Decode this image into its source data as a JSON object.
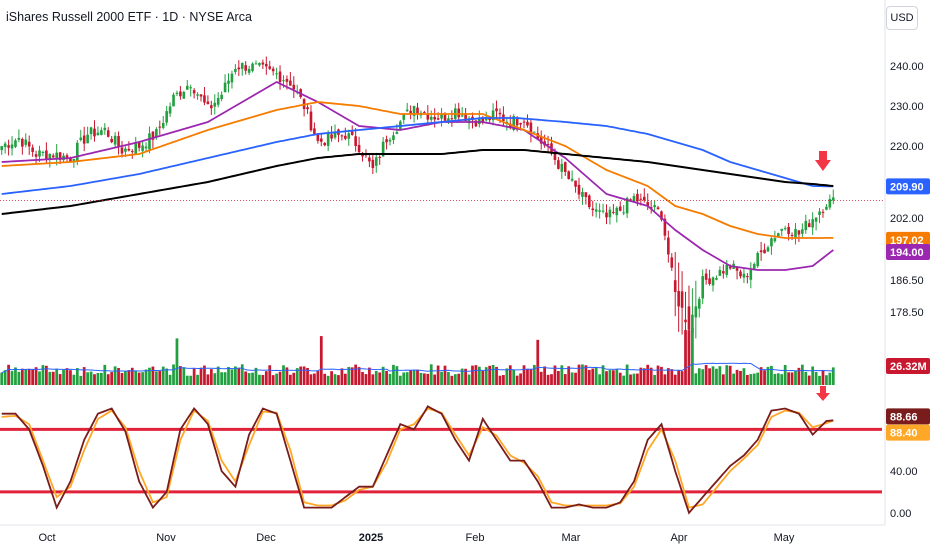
{
  "chart": {
    "title": "iShares Russell 2000 ETF · 1D · NYSE Arca",
    "currency": "USD"
  },
  "colors": {
    "up": "#22a040",
    "down": "#c8182f",
    "ma20": "#9c27b0",
    "ma50": "#f57c00",
    "ma100": "#2962ff",
    "ma200": "#000000",
    "stoch_k": "#7b1c1c",
    "stoch_d": "#ffa726",
    "band": "#e0233a",
    "arrow": "#f23645"
  },
  "chart_data": [
    {
      "type": "candlestick",
      "x_tick_labels": [
        "Oct",
        "Nov",
        "Dec",
        "2025",
        "Feb",
        "Mar",
        "Apr",
        "May"
      ],
      "y_tick_labels": [
        "240.00",
        "230.00",
        "220.00",
        "209.90",
        "202.00",
        "197.02",
        "194.00",
        "186.50",
        "178.50"
      ],
      "y_ticks": [
        240,
        230,
        220,
        202,
        186.5,
        178.5
      ],
      "ylim": [
        172,
        247
      ],
      "price_anchors": [
        [
          0,
          220
        ],
        [
          5,
          222
        ],
        [
          10,
          218
        ],
        [
          15,
          218
        ],
        [
          20,
          217
        ],
        [
          25,
          223
        ],
        [
          30,
          224
        ],
        [
          35,
          219
        ],
        [
          40,
          220
        ],
        [
          45,
          223
        ],
        [
          50,
          232
        ],
        [
          55,
          236
        ],
        [
          60,
          229
        ],
        [
          64,
          233
        ],
        [
          68,
          240
        ],
        [
          72,
          240
        ],
        [
          76,
          239
        ],
        [
          80,
          238
        ],
        [
          84,
          236
        ],
        [
          88,
          230
        ],
        [
          92,
          221
        ],
        [
          96,
          222
        ],
        [
          100,
          223
        ],
        [
          104,
          220
        ],
        [
          108,
          214
        ],
        [
          112,
          222
        ],
        [
          116,
          226
        ],
        [
          120,
          230
        ],
        [
          124,
          228
        ],
        [
          128,
          227
        ],
        [
          132,
          229
        ],
        [
          136,
          227
        ],
        [
          140,
          226
        ],
        [
          144,
          228
        ],
        [
          148,
          226
        ],
        [
          152,
          227
        ],
        [
          156,
          222
        ],
        [
          160,
          218
        ],
        [
          164,
          213
        ],
        [
          168,
          208
        ],
        [
          172,
          204
        ],
        [
          176,
          202
        ],
        [
          180,
          204
        ],
        [
          184,
          207
        ],
        [
          188,
          205
        ],
        [
          192,
          203
        ],
        [
          196,
          183
        ],
        [
          200,
          175
        ],
        [
          204,
          186
        ],
        [
          208,
          188
        ],
        [
          212,
          190
        ],
        [
          216,
          187
        ],
        [
          220,
          192
        ],
        [
          224,
          197
        ],
        [
          228,
          200
        ],
        [
          232,
          198
        ],
        [
          236,
          202
        ],
        [
          240,
          206
        ],
        [
          242,
          206
        ]
      ],
      "ma_anchors": {
        "ma20": [
          [
            0,
            216
          ],
          [
            20,
            217
          ],
          [
            40,
            221
          ],
          [
            60,
            226
          ],
          [
            80,
            236
          ],
          [
            92,
            231
          ],
          [
            104,
            225
          ],
          [
            116,
            224
          ],
          [
            128,
            226
          ],
          [
            140,
            226
          ],
          [
            152,
            224
          ],
          [
            164,
            217
          ],
          [
            176,
            208
          ],
          [
            188,
            205
          ],
          [
            196,
            199
          ],
          [
            204,
            194
          ],
          [
            212,
            190
          ],
          [
            220,
            189
          ],
          [
            228,
            189
          ],
          [
            236,
            190
          ],
          [
            242,
            194
          ]
        ],
        "ma50": [
          [
            0,
            215
          ],
          [
            20,
            216
          ],
          [
            40,
            218
          ],
          [
            60,
            224
          ],
          [
            80,
            229
          ],
          [
            92,
            231
          ],
          [
            104,
            230
          ],
          [
            116,
            228
          ],
          [
            128,
            228
          ],
          [
            140,
            228
          ],
          [
            152,
            224
          ],
          [
            164,
            220
          ],
          [
            176,
            214
          ],
          [
            188,
            210
          ],
          [
            196,
            205
          ],
          [
            204,
            203
          ],
          [
            212,
            200
          ],
          [
            220,
            198
          ],
          [
            228,
            197
          ],
          [
            236,
            197
          ],
          [
            242,
            197.02
          ]
        ],
        "ma100": [
          [
            0,
            208
          ],
          [
            20,
            210
          ],
          [
            40,
            213
          ],
          [
            60,
            217
          ],
          [
            80,
            221
          ],
          [
            92,
            223
          ],
          [
            104,
            224
          ],
          [
            116,
            225
          ],
          [
            128,
            226
          ],
          [
            140,
            227
          ],
          [
            150,
            227
          ],
          [
            164,
            226
          ],
          [
            176,
            225
          ],
          [
            188,
            223
          ],
          [
            196,
            221
          ],
          [
            204,
            219
          ],
          [
            212,
            216
          ],
          [
            220,
            214
          ],
          [
            228,
            212
          ],
          [
            236,
            210
          ],
          [
            242,
            209.9
          ]
        ],
        "ma200": [
          [
            0,
            203
          ],
          [
            20,
            205
          ],
          [
            40,
            208
          ],
          [
            60,
            211
          ],
          [
            80,
            215
          ],
          [
            92,
            217
          ],
          [
            104,
            218
          ],
          [
            116,
            218
          ],
          [
            128,
            218
          ],
          [
            140,
            219
          ],
          [
            152,
            219
          ],
          [
            164,
            218
          ],
          [
            176,
            217
          ],
          [
            188,
            216
          ],
          [
            196,
            215
          ],
          [
            204,
            214
          ],
          [
            212,
            213
          ],
          [
            220,
            212
          ],
          [
            228,
            211
          ],
          [
            236,
            210.5
          ],
          [
            242,
            210
          ]
        ]
      },
      "last_price": 206.4,
      "volume_tag": "26.32M",
      "volume_spikes": [
        51,
        93,
        156,
        199,
        200,
        201
      ]
    },
    {
      "type": "line",
      "name": "stochastic",
      "y_tick_labels": [
        "88.66",
        "88.40",
        "40.00",
        "0.00"
      ],
      "y_ticks": [
        40,
        0
      ],
      "ylim": [
        -5,
        112
      ],
      "band_levels": [
        80,
        20
      ],
      "k_anchors": [
        [
          0,
          95
        ],
        [
          4,
          95
        ],
        [
          8,
          80
        ],
        [
          12,
          45
        ],
        [
          16,
          5
        ],
        [
          20,
          30
        ],
        [
          24,
          70
        ],
        [
          28,
          95
        ],
        [
          32,
          100
        ],
        [
          36,
          78
        ],
        [
          40,
          30
        ],
        [
          44,
          5
        ],
        [
          48,
          20
        ],
        [
          52,
          80
        ],
        [
          56,
          100
        ],
        [
          60,
          85
        ],
        [
          64,
          40
        ],
        [
          68,
          25
        ],
        [
          72,
          75
        ],
        [
          76,
          100
        ],
        [
          80,
          95
        ],
        [
          84,
          50
        ],
        [
          88,
          5
        ],
        [
          92,
          5
        ],
        [
          96,
          5
        ],
        [
          100,
          15
        ],
        [
          104,
          25
        ],
        [
          108,
          25
        ],
        [
          112,
          55
        ],
        [
          116,
          85
        ],
        [
          120,
          80
        ],
        [
          124,
          102
        ],
        [
          128,
          95
        ],
        [
          132,
          70
        ],
        [
          136,
          50
        ],
        [
          140,
          90
        ],
        [
          144,
          70
        ],
        [
          148,
          50
        ],
        [
          152,
          50
        ],
        [
          156,
          30
        ],
        [
          160,
          5
        ],
        [
          164,
          5
        ],
        [
          168,
          8
        ],
        [
          172,
          5
        ],
        [
          176,
          5
        ],
        [
          180,
          10
        ],
        [
          184,
          30
        ],
        [
          188,
          70
        ],
        [
          192,
          85
        ],
        [
          196,
          40
        ],
        [
          200,
          0
        ],
        [
          204,
          15
        ],
        [
          208,
          30
        ],
        [
          212,
          45
        ],
        [
          216,
          55
        ],
        [
          220,
          70
        ],
        [
          224,
          98
        ],
        [
          228,
          100
        ],
        [
          232,
          95
        ],
        [
          236,
          75
        ],
        [
          240,
          88
        ],
        [
          242,
          88.66
        ]
      ],
      "d_anchors": [
        [
          0,
          92
        ],
        [
          4,
          93
        ],
        [
          8,
          85
        ],
        [
          12,
          50
        ],
        [
          16,
          15
        ],
        [
          20,
          25
        ],
        [
          24,
          60
        ],
        [
          28,
          90
        ],
        [
          32,
          98
        ],
        [
          36,
          82
        ],
        [
          40,
          40
        ],
        [
          44,
          10
        ],
        [
          48,
          15
        ],
        [
          52,
          70
        ],
        [
          56,
          98
        ],
        [
          60,
          88
        ],
        [
          64,
          50
        ],
        [
          68,
          30
        ],
        [
          72,
          65
        ],
        [
          76,
          97
        ],
        [
          80,
          96
        ],
        [
          84,
          60
        ],
        [
          88,
          10
        ],
        [
          92,
          7
        ],
        [
          96,
          7
        ],
        [
          100,
          12
        ],
        [
          104,
          22
        ],
        [
          108,
          25
        ],
        [
          112,
          48
        ],
        [
          116,
          80
        ],
        [
          120,
          85
        ],
        [
          124,
          100
        ],
        [
          128,
          96
        ],
        [
          132,
          75
        ],
        [
          136,
          55
        ],
        [
          140,
          82
        ],
        [
          144,
          74
        ],
        [
          148,
          55
        ],
        [
          152,
          48
        ],
        [
          156,
          35
        ],
        [
          160,
          10
        ],
        [
          164,
          7
        ],
        [
          168,
          7
        ],
        [
          172,
          7
        ],
        [
          176,
          7
        ],
        [
          180,
          9
        ],
        [
          184,
          25
        ],
        [
          188,
          60
        ],
        [
          192,
          80
        ],
        [
          196,
          50
        ],
        [
          200,
          5
        ],
        [
          204,
          8
        ],
        [
          208,
          24
        ],
        [
          212,
          40
        ],
        [
          216,
          52
        ],
        [
          220,
          65
        ],
        [
          224,
          92
        ],
        [
          228,
          98
        ],
        [
          232,
          96
        ],
        [
          236,
          82
        ],
        [
          240,
          86
        ],
        [
          242,
          88.4
        ]
      ]
    }
  ]
}
